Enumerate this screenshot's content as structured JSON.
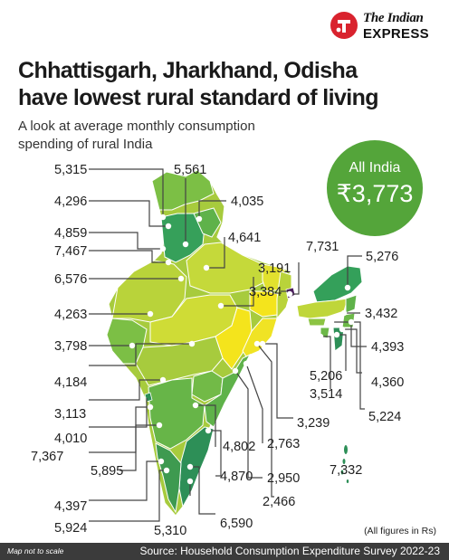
{
  "brand": {
    "line1": "The Indian",
    "line2": "EXPRESS",
    "logo_icon": "the-indian-express-logo-icon",
    "logo_color": "#d9232e"
  },
  "title_lines": [
    "Chhattisgarh, Jharkhand, Odisha",
    "have lowest rural standard of living"
  ],
  "subtitle_lines": [
    "A look at average monthly consumption",
    "spending of rural India"
  ],
  "all_india": {
    "label": "All India",
    "value": "₹3,773",
    "color": "#54a53a"
  },
  "map": {
    "type": "choropleth-map",
    "region": "India (rural)",
    "metric": "average monthly consumption spending",
    "colors": {
      "low": "#f4e41c",
      "mid": "#a7cb3d",
      "high": "#2d8f57",
      "accent": "#4b1e5e"
    },
    "labels": [
      "5,315",
      "5,561",
      "4,296",
      "4,035",
      "4,859",
      "7,467",
      "4,641",
      "6,576",
      "3,191",
      "7,731",
      "5,276",
      "3,384",
      "4,263",
      "3,432",
      "3,798",
      "4,393",
      "4,184",
      "5,206",
      "4,360",
      "3,514",
      "5,224",
      "3,113",
      "3,239",
      "4,010",
      "7,367",
      "4,802",
      "2,763",
      "5,895",
      "4,870",
      "2,950",
      "7,332",
      "4,397",
      "2,466",
      "5,924",
      "6,590",
      "5,310"
    ]
  },
  "note": "(All figures in Rs)",
  "footer": {
    "left": "Map not to scale",
    "right": "Source: Household Consumption Expenditure Survey 2022-23"
  }
}
